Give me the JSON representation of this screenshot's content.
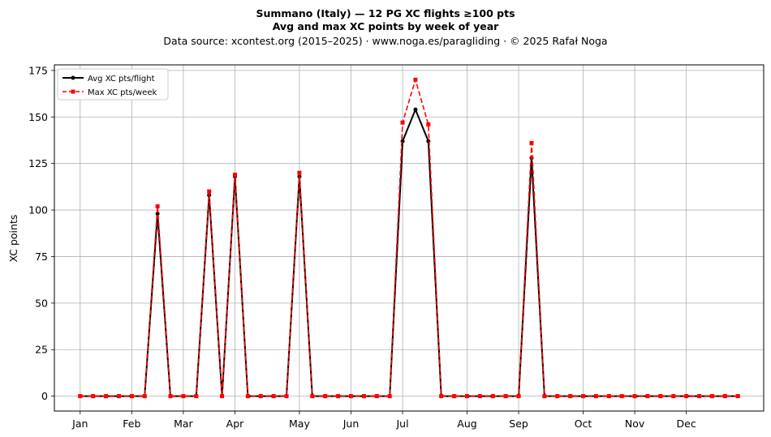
{
  "chart_data": {
    "type": "line",
    "title": "Summano (Italy)  —  12 PG XC flights ≥100 pts",
    "subtitle": "Avg and max XC points by week of year",
    "source": "Data source: xcontest.org (2015–2025)  ·  www.noga.es/paragliding  ·  © 2025 Rafał Noga",
    "xlabel": "",
    "ylabel": "XC points",
    "x_tick_labels": [
      "Jan",
      "Feb",
      "Mar",
      "Apr",
      "May",
      "Jun",
      "Jul",
      "Aug",
      "Sep",
      "Oct",
      "Nov",
      "Dec"
    ],
    "x_tick_weeks": [
      1,
      5,
      9,
      13,
      18,
      22,
      26,
      31,
      35,
      40,
      44,
      48
    ],
    "xlim": [
      -1,
      54
    ],
    "ylim": [
      -8,
      178
    ],
    "y_ticks": [
      0,
      25,
      50,
      75,
      100,
      125,
      150,
      175
    ],
    "grid": true,
    "legend_position": "top-left",
    "series": [
      {
        "name": "Avg XC pts/flight",
        "color": "#000000",
        "style": "solid",
        "marker": "circle",
        "x": [
          1,
          2,
          3,
          4,
          5,
          6,
          7,
          8,
          9,
          10,
          11,
          12,
          13,
          14,
          15,
          16,
          17,
          18,
          19,
          20,
          21,
          22,
          23,
          24,
          25,
          26,
          27,
          28,
          29,
          30,
          31,
          32,
          33,
          34,
          35,
          36,
          37,
          38,
          39,
          40,
          41,
          42,
          43,
          44,
          45,
          46,
          47,
          48,
          49,
          50,
          51,
          52
        ],
        "values": [
          0,
          0,
          0,
          0,
          0,
          0,
          98,
          0,
          0,
          0,
          108,
          0,
          118,
          0,
          0,
          0,
          0,
          118,
          0,
          0,
          0,
          0,
          0,
          0,
          0,
          137,
          154,
          137,
          0,
          0,
          0,
          0,
          0,
          0,
          0,
          128,
          0,
          0,
          0,
          0,
          0,
          0,
          0,
          0,
          0,
          0,
          0,
          0,
          0,
          0,
          0,
          0
        ]
      },
      {
        "name": "Max XC pts/week",
        "color": "#ff0000",
        "style": "dashed",
        "marker": "square",
        "x": [
          1,
          2,
          3,
          4,
          5,
          6,
          7,
          8,
          9,
          10,
          11,
          12,
          13,
          14,
          15,
          16,
          17,
          18,
          19,
          20,
          21,
          22,
          23,
          24,
          25,
          26,
          27,
          28,
          29,
          30,
          31,
          32,
          33,
          34,
          35,
          36,
          37,
          38,
          39,
          40,
          41,
          42,
          43,
          44,
          45,
          46,
          47,
          48,
          49,
          50,
          51,
          52
        ],
        "values": [
          0,
          0,
          0,
          0,
          0,
          0,
          102,
          0,
          0,
          0,
          110,
          0,
          119,
          0,
          0,
          0,
          0,
          120,
          0,
          0,
          0,
          0,
          0,
          0,
          0,
          147,
          170,
          146,
          0,
          0,
          0,
          0,
          0,
          0,
          0,
          136,
          0,
          0,
          0,
          0,
          0,
          0,
          0,
          0,
          0,
          0,
          0,
          0,
          0,
          0,
          0,
          0
        ]
      }
    ]
  }
}
